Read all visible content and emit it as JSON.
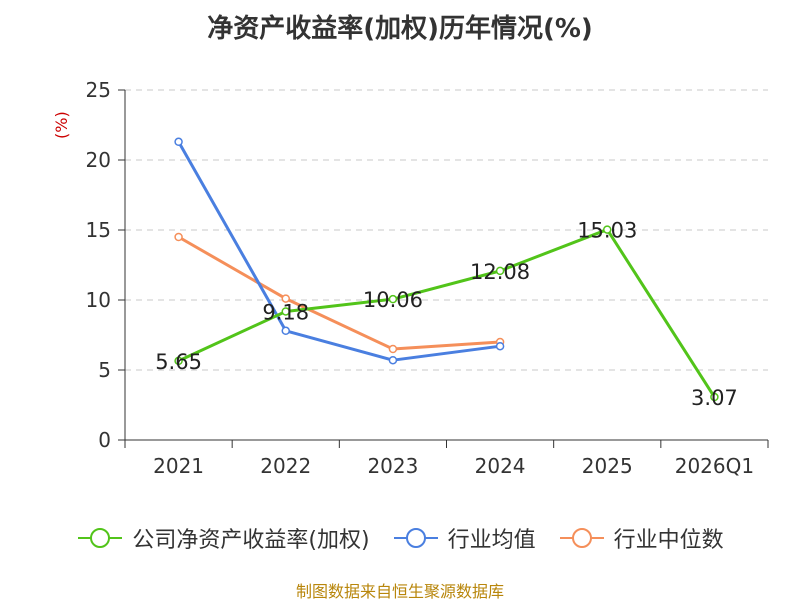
{
  "chart_data": {
    "type": "line",
    "title": "净资产收益率(加权)历年情况(%)",
    "ylabel": "(%)",
    "xlabel": "",
    "categories": [
      "2021",
      "2022",
      "2023",
      "2024",
      "2025",
      "2026Q1"
    ],
    "ylim": [
      0,
      25
    ],
    "yticks": [
      0,
      5,
      10,
      15,
      20,
      25
    ],
    "grid": true,
    "legend_position": "bottom",
    "series": [
      {
        "name": "公司净资产收益率(加权)",
        "color": "#52c41a",
        "values": [
          5.65,
          9.18,
          10.06,
          12.08,
          15.03,
          3.07
        ],
        "labels": [
          "5.65",
          "9.18",
          "10.06",
          "12.08",
          "15.03",
          "3.07"
        ]
      },
      {
        "name": "行业均值",
        "color": "#4a7fe0",
        "values": [
          21.3,
          7.8,
          5.7,
          6.7,
          null,
          null
        ]
      },
      {
        "name": "行业中位数",
        "color": "#f58f5a",
        "values": [
          14.5,
          10.1,
          6.5,
          7.0,
          null,
          null
        ]
      }
    ]
  },
  "source_text": "制图数据来自恒生聚源数据库"
}
